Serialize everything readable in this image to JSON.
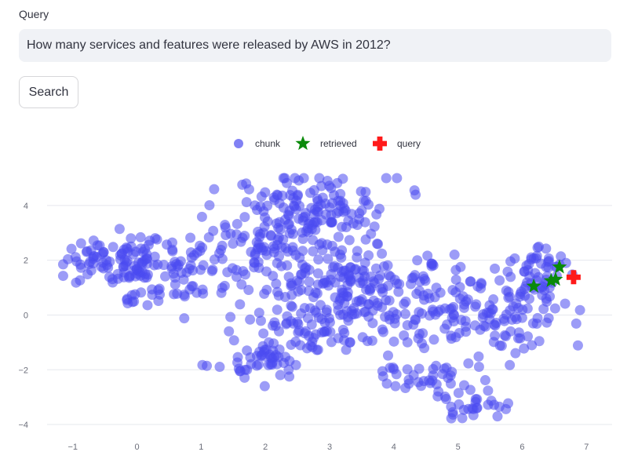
{
  "query": {
    "label": "Query",
    "value": "How many services and features were released by AWS in 2012?"
  },
  "search": {
    "label": "Search"
  },
  "chart_data": {
    "type": "scatter",
    "xlim": [
      -1.4,
      7.4
    ],
    "ylim": [
      -4.4,
      5.2
    ],
    "x_ticks": [
      -1,
      0,
      1,
      2,
      3,
      4,
      5,
      6,
      7
    ],
    "y_ticks": [
      -4,
      -2,
      0,
      2,
      4
    ],
    "grid": "horizontal",
    "legend_placement": "top-center",
    "legend": [
      {
        "label": "chunk",
        "symbol": "circle",
        "color": "#4b4bf0"
      },
      {
        "label": "retrieved",
        "symbol": "star",
        "color": "#0a8a0a"
      },
      {
        "label": "query",
        "symbol": "cross",
        "color": "#ff1a1a"
      }
    ],
    "chunk_clusters": [
      {
        "x": 0.2,
        "y": 2.0,
        "sx": 0.55,
        "sy": 0.45,
        "n": 110
      },
      {
        "x": -0.6,
        "y": 2.0,
        "sx": 0.3,
        "sy": 0.4,
        "n": 30
      },
      {
        "x": 2.2,
        "y": 2.5,
        "sx": 0.6,
        "sy": 1.0,
        "n": 140
      },
      {
        "x": 2.9,
        "y": 4.0,
        "sx": 0.5,
        "sy": 0.7,
        "n": 80
      },
      {
        "x": 3.2,
        "y": 1.2,
        "sx": 0.6,
        "sy": 0.9,
        "n": 120
      },
      {
        "x": 2.7,
        "y": -0.5,
        "sx": 0.55,
        "sy": 0.6,
        "n": 80
      },
      {
        "x": 4.3,
        "y": 0.0,
        "sx": 0.6,
        "sy": 0.6,
        "n": 60
      },
      {
        "x": 4.6,
        "y": 1.1,
        "sx": 0.4,
        "sy": 0.4,
        "n": 30
      },
      {
        "x": 5.5,
        "y": -0.2,
        "sx": 0.5,
        "sy": 0.6,
        "n": 50
      },
      {
        "x": 6.0,
        "y": 0.5,
        "sx": 0.35,
        "sy": 0.6,
        "n": 45
      },
      {
        "x": 6.4,
        "y": 1.7,
        "sx": 0.25,
        "sy": 0.4,
        "n": 40
      },
      {
        "x": 1.9,
        "y": -1.8,
        "sx": 0.35,
        "sy": 0.35,
        "n": 40
      },
      {
        "x": 4.5,
        "y": -2.4,
        "sx": 0.45,
        "sy": 0.4,
        "n": 40
      },
      {
        "x": 5.2,
        "y": -3.4,
        "sx": 0.25,
        "sy": 0.25,
        "n": 25
      },
      {
        "x": 0.7,
        "y": 0.7,
        "sx": 0.4,
        "sy": 0.3,
        "n": 20
      },
      {
        "x": -0.15,
        "y": 0.6,
        "sx": 0.1,
        "sy": 0.1,
        "n": 6
      }
    ],
    "retrieved": [
      {
        "x": 6.18,
        "y": 1.05
      },
      {
        "x": 6.45,
        "y": 1.25
      },
      {
        "x": 6.52,
        "y": 1.3
      },
      {
        "x": 6.58,
        "y": 1.75
      }
    ],
    "query_point": {
      "x": 6.8,
      "y": 1.38
    }
  }
}
